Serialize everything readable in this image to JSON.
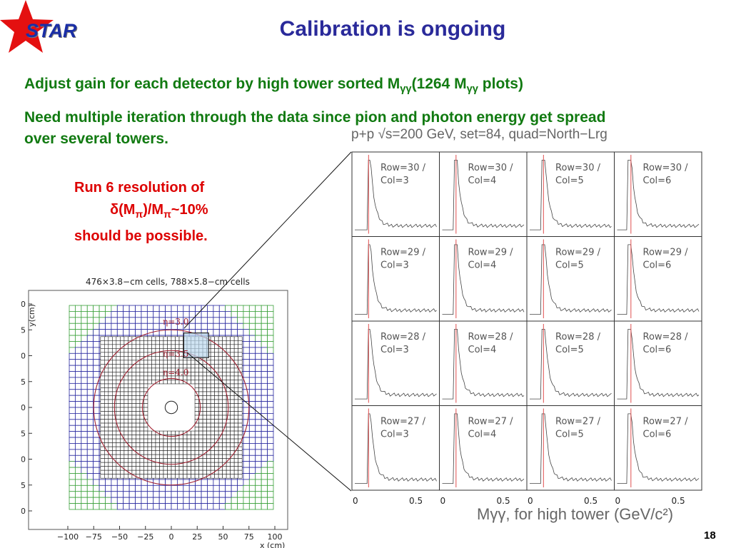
{
  "logo": {
    "text": "STAR"
  },
  "title": "Calibration is ongoing",
  "bullet1": {
    "prefix": "Adjust gain for each detector by high tower sorted M",
    "sub1": "γγ",
    "middle": "(1264 M",
    "sub2": "γγ",
    "suffix": " plots)"
  },
  "bullet2": "Need multiple iteration through the data since pion and photon energy get spread over several towers.",
  "red_note": {
    "line1": "Run 6 resolution of",
    "delta": "δ",
    "m1": "(M",
    "pi1": "π",
    "mid": ")/M",
    "pi2": "π",
    "tail": "~10%",
    "line3": "should be possible."
  },
  "histogram_grid": {
    "title": "p+p √s=200 GeV, set=84, quad=North−Lrg",
    "xaxis_label": "Mγγ, for high tower (GeV/c²)",
    "xticks": [
      "0",
      "0.5"
    ],
    "panels": [
      [
        "Row=30 /",
        "Col=3"
      ],
      [
        "Row=30 /",
        "Col=4"
      ],
      [
        "Row=30 /",
        "Col=5"
      ],
      [
        "Row=30 /",
        "Col=6"
      ],
      [
        "Row=29 /",
        "Col=3"
      ],
      [
        "Row=29 /",
        "Col=4"
      ],
      [
        "Row=29 /",
        "Col=5"
      ],
      [
        "Row=29 /",
        "Col=6"
      ],
      [
        "Row=28 /",
        "Col=3"
      ],
      [
        "Row=28 /",
        "Col=4"
      ],
      [
        "Row=28 /",
        "Col=5"
      ],
      [
        "Row=28 /",
        "Col=6"
      ],
      [
        "Row=27 /",
        "Col=3"
      ],
      [
        "Row=27 /",
        "Col=4"
      ],
      [
        "Row=27 /",
        "Col=5"
      ],
      [
        "Row=27 /",
        "Col=6"
      ]
    ]
  },
  "detector_map": {
    "title": "476×3.8−cm cells, 788×5.8−cm cells",
    "ylabel": "y(cm)",
    "xlabel": "x (cm)",
    "ticks": [
      "−100",
      "−75",
      "−50",
      "−25",
      "0",
      "25",
      "50",
      "75",
      "100"
    ],
    "xticks": [
      "−100",
      "−75",
      "−50",
      "−25",
      "0",
      "25",
      "50",
      "75",
      "100"
    ],
    "eta_labels": [
      "η=3.0",
      "η=3.5",
      "η=4.0"
    ]
  },
  "page_number": "18",
  "colors": {
    "title": "#2a2a9a",
    "green": "#117a11",
    "red": "#dd0000",
    "star": "#e41010"
  }
}
